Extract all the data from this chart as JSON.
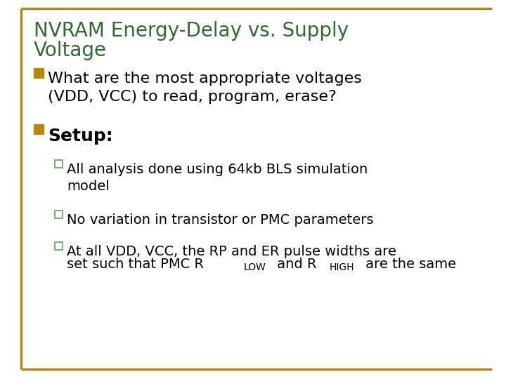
{
  "title_line1": "NVRAM Energy-Delay vs. Supply",
  "title_line2": "Voltage",
  "title_color": "#2E6B2E",
  "background_color": "#FFFFFF",
  "border_color": "#B8860B",
  "bullet_marker_color": "#B8860B",
  "sub_bullet_marker_color": "#7DB07D",
  "bullet1_line1": "What are the most appropriate voltages",
  "bullet1_line2": "(VDD, VCC) to read, program, erase?",
  "bullet2_text": "Setup:",
  "sub1_line1": "All analysis done using 64kb BLS simulation",
  "sub1_line2": "model",
  "sub2_text": "No variation in transistor or PMC parameters",
  "sub3_line1": "At all VDD, VCC, the RP and ER pulse widths are",
  "sub3_line2_pre": "set such that PMC R",
  "sub3_sub1": "LOW",
  "sub3_mid": " and R",
  "sub3_sub2": "HIGH",
  "sub3_post": " are the same",
  "title_fontsize": 20,
  "bullet_fontsize": 16,
  "setup_fontsize": 18,
  "sub_bullet_fontsize": 14,
  "sub_script_fontsize": 10,
  "figsize": [
    7.2,
    5.4
  ],
  "dpi": 100
}
